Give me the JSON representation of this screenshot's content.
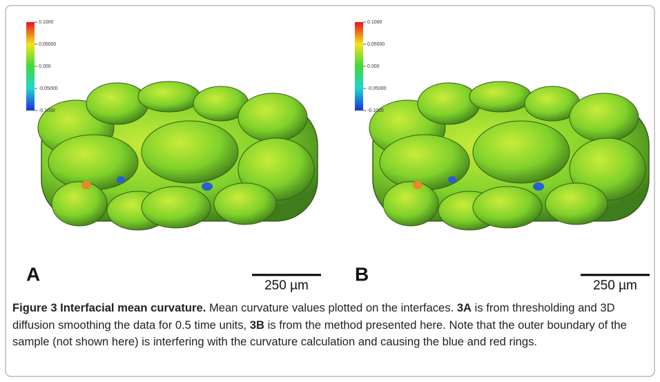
{
  "panels": [
    {
      "label": "A",
      "colorbar_labels": [
        "0.1000",
        "0.05000",
        "0.000",
        "-0.05000",
        "-0.1000"
      ],
      "scale_bar": "250 µm"
    },
    {
      "label": "B",
      "colorbar_labels": [
        "0.1000",
        "0.05000",
        "0.000",
        "-0.05000",
        "-0.1000"
      ],
      "scale_bar": "250 µm"
    }
  ],
  "caption": {
    "title": "Figure 3 Interfacial mean curvature.",
    "text_1": "Mean curvature values plotted on the interfaces.",
    "ref_a": "3A",
    "text_2": "is from thresholding and 3D diffusion smoothing the data for 0.5 time units,",
    "ref_b": "3B",
    "text_3": "is from the method presented here. Note that the outer boundary of the sample (not shown here) is interfering with the curvature calculation and causing the blue and red rings."
  }
}
